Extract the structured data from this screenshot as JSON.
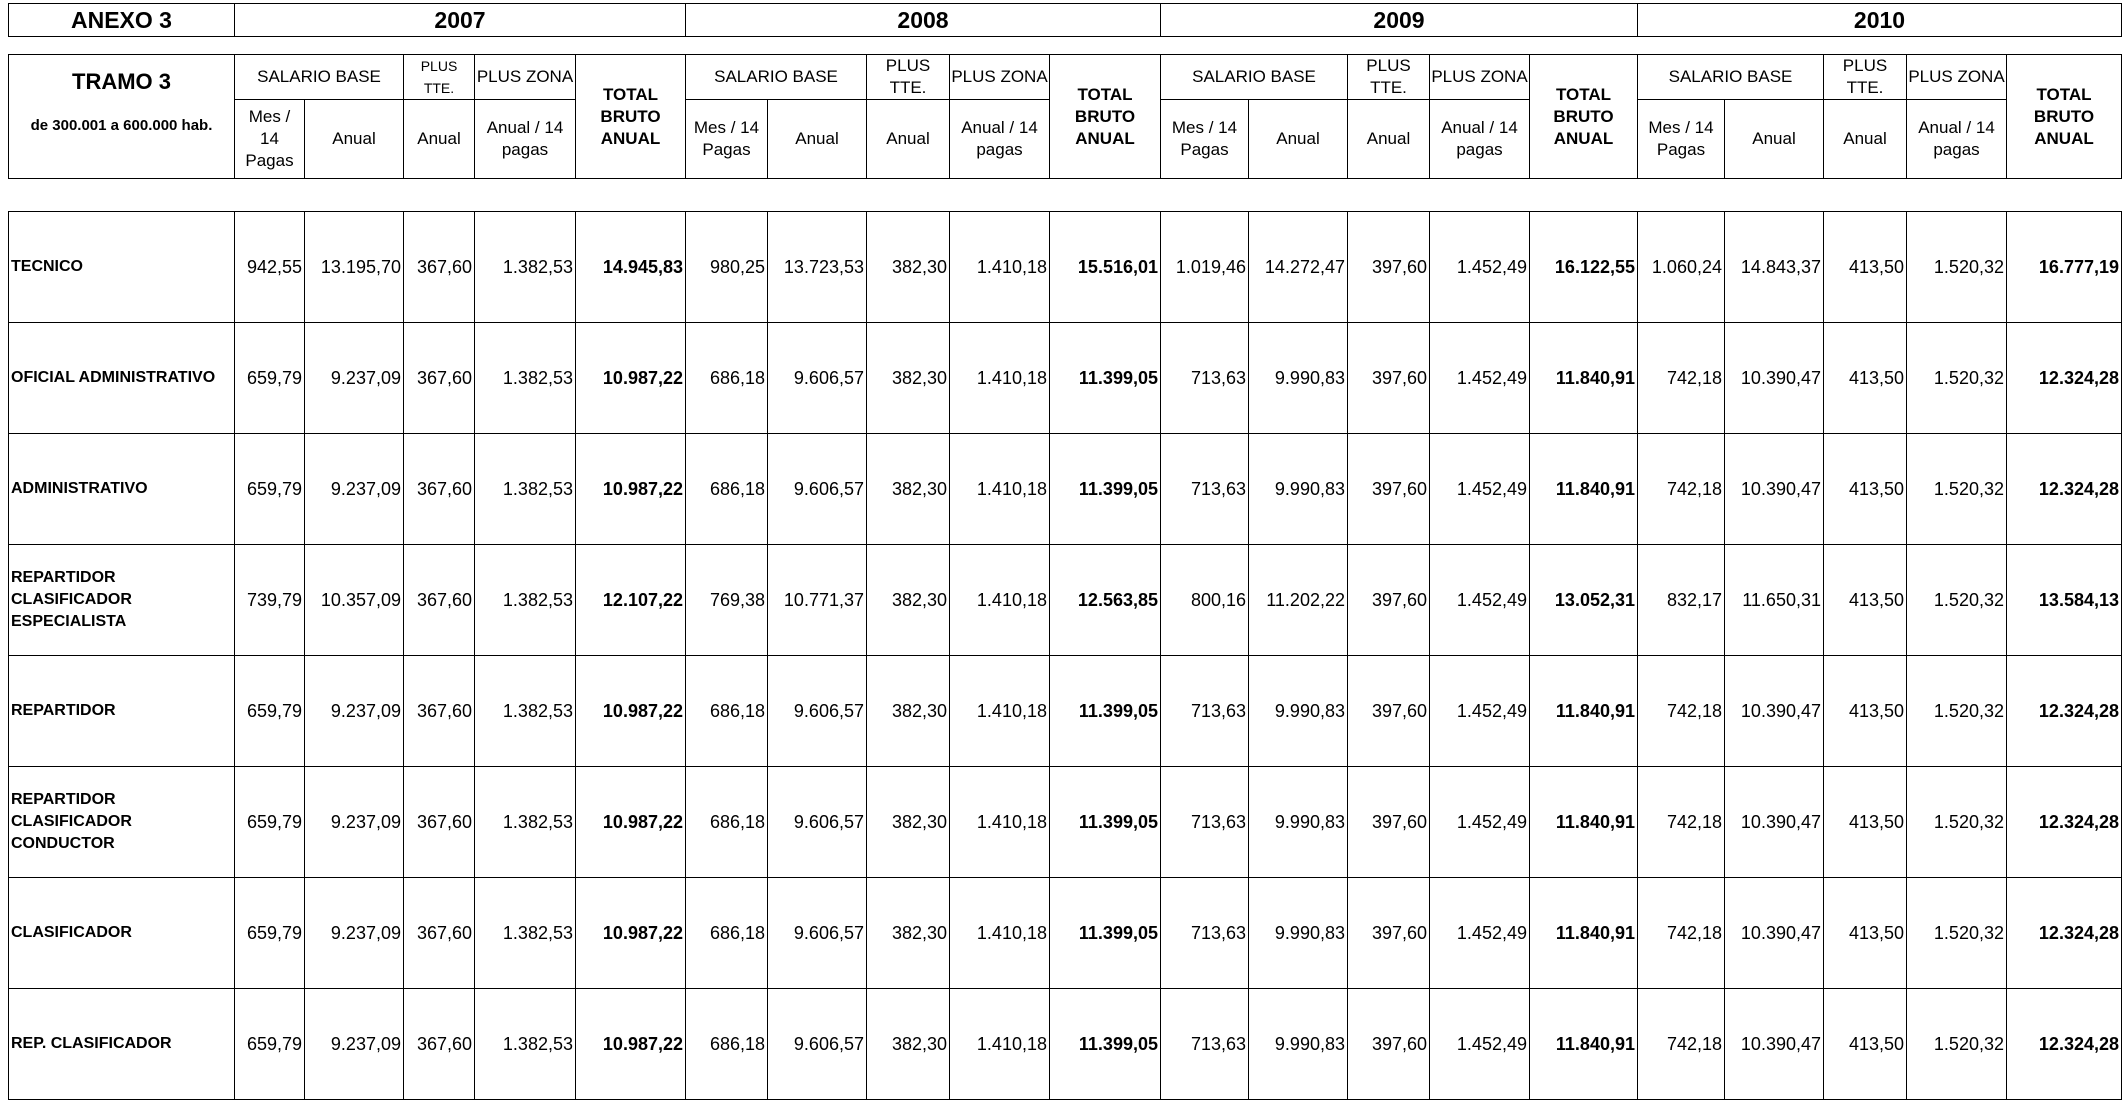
{
  "header": {
    "annex": "ANEXO 3",
    "years": [
      "2007",
      "2008",
      "2009",
      "2010"
    ],
    "tramo_title": "TRAMO 3",
    "tramo_range": "de 300.001 a 600.000 hab.",
    "groups": {
      "salario_base": "SALARIO BASE",
      "plus_tte": "PLUS TTE.",
      "plus_zona": "PLUS ZONA",
      "total": "TOTAL BRUTO ANUAL"
    },
    "sub": {
      "mes_2007": "Mes / 14 Pagas",
      "mes_other": "Mes / 14 Pagas",
      "anual": "Anual",
      "anual_14": "Anual / 14 pagas"
    }
  },
  "rows": [
    {
      "label": "TECNICO",
      "values": [
        [
          "942,55",
          "13.195,70",
          "367,60",
          "1.382,53",
          "14.945,83"
        ],
        [
          "980,25",
          "13.723,53",
          "382,30",
          "1.410,18",
          "15.516,01"
        ],
        [
          "1.019,46",
          "14.272,47",
          "397,60",
          "1.452,49",
          "16.122,55"
        ],
        [
          "1.060,24",
          "14.843,37",
          "413,50",
          "1.520,32",
          "16.777,19"
        ]
      ]
    },
    {
      "label": "OFICIAL ADMINISTRATIVO",
      "values": [
        [
          "659,79",
          "9.237,09",
          "367,60",
          "1.382,53",
          "10.987,22"
        ],
        [
          "686,18",
          "9.606,57",
          "382,30",
          "1.410,18",
          "11.399,05"
        ],
        [
          "713,63",
          "9.990,83",
          "397,60",
          "1.452,49",
          "11.840,91"
        ],
        [
          "742,18",
          "10.390,47",
          "413,50",
          "1.520,32",
          "12.324,28"
        ]
      ]
    },
    {
      "label": "ADMINISTRATIVO",
      "values": [
        [
          "659,79",
          "9.237,09",
          "367,60",
          "1.382,53",
          "10.987,22"
        ],
        [
          "686,18",
          "9.606,57",
          "382,30",
          "1.410,18",
          "11.399,05"
        ],
        [
          "713,63",
          "9.990,83",
          "397,60",
          "1.452,49",
          "11.840,91"
        ],
        [
          "742,18",
          "10.390,47",
          "413,50",
          "1.520,32",
          "12.324,28"
        ]
      ]
    },
    {
      "label": "REPARTIDOR CLASIFICADOR ESPECIALISTA",
      "values": [
        [
          "739,79",
          "10.357,09",
          "367,60",
          "1.382,53",
          "12.107,22"
        ],
        [
          "769,38",
          "10.771,37",
          "382,30",
          "1.410,18",
          "12.563,85"
        ],
        [
          "800,16",
          "11.202,22",
          "397,60",
          "1.452,49",
          "13.052,31"
        ],
        [
          "832,17",
          "11.650,31",
          "413,50",
          "1.520,32",
          "13.584,13"
        ]
      ]
    },
    {
      "label": "REPARTIDOR",
      "values": [
        [
          "659,79",
          "9.237,09",
          "367,60",
          "1.382,53",
          "10.987,22"
        ],
        [
          "686,18",
          "9.606,57",
          "382,30",
          "1.410,18",
          "11.399,05"
        ],
        [
          "713,63",
          "9.990,83",
          "397,60",
          "1.452,49",
          "11.840,91"
        ],
        [
          "742,18",
          "10.390,47",
          "413,50",
          "1.520,32",
          "12.324,28"
        ]
      ]
    },
    {
      "label": "REPARTIDOR CLASIFICADOR CONDUCTOR",
      "values": [
        [
          "659,79",
          "9.237,09",
          "367,60",
          "1.382,53",
          "10.987,22"
        ],
        [
          "686,18",
          "9.606,57",
          "382,30",
          "1.410,18",
          "11.399,05"
        ],
        [
          "713,63",
          "9.990,83",
          "397,60",
          "1.452,49",
          "11.840,91"
        ],
        [
          "742,18",
          "10.390,47",
          "413,50",
          "1.520,32",
          "12.324,28"
        ]
      ]
    },
    {
      "label": "CLASIFICADOR",
      "values": [
        [
          "659,79",
          "9.237,09",
          "367,60",
          "1.382,53",
          "10.987,22"
        ],
        [
          "686,18",
          "9.606,57",
          "382,30",
          "1.410,18",
          "11.399,05"
        ],
        [
          "713,63",
          "9.990,83",
          "397,60",
          "1.452,49",
          "11.840,91"
        ],
        [
          "742,18",
          "10.390,47",
          "413,50",
          "1.520,32",
          "12.324,28"
        ]
      ]
    },
    {
      "label": "REP. CLASIFICADOR",
      "values": [
        [
          "659,79",
          "9.237,09",
          "367,60",
          "1.382,53",
          "10.987,22"
        ],
        [
          "686,18",
          "9.606,57",
          "382,30",
          "1.410,18",
          "11.399,05"
        ],
        [
          "713,63",
          "9.990,83",
          "397,60",
          "1.452,49",
          "11.840,91"
        ],
        [
          "742,18",
          "10.390,47",
          "413,50",
          "1.520,32",
          "12.324,28"
        ]
      ]
    }
  ]
}
